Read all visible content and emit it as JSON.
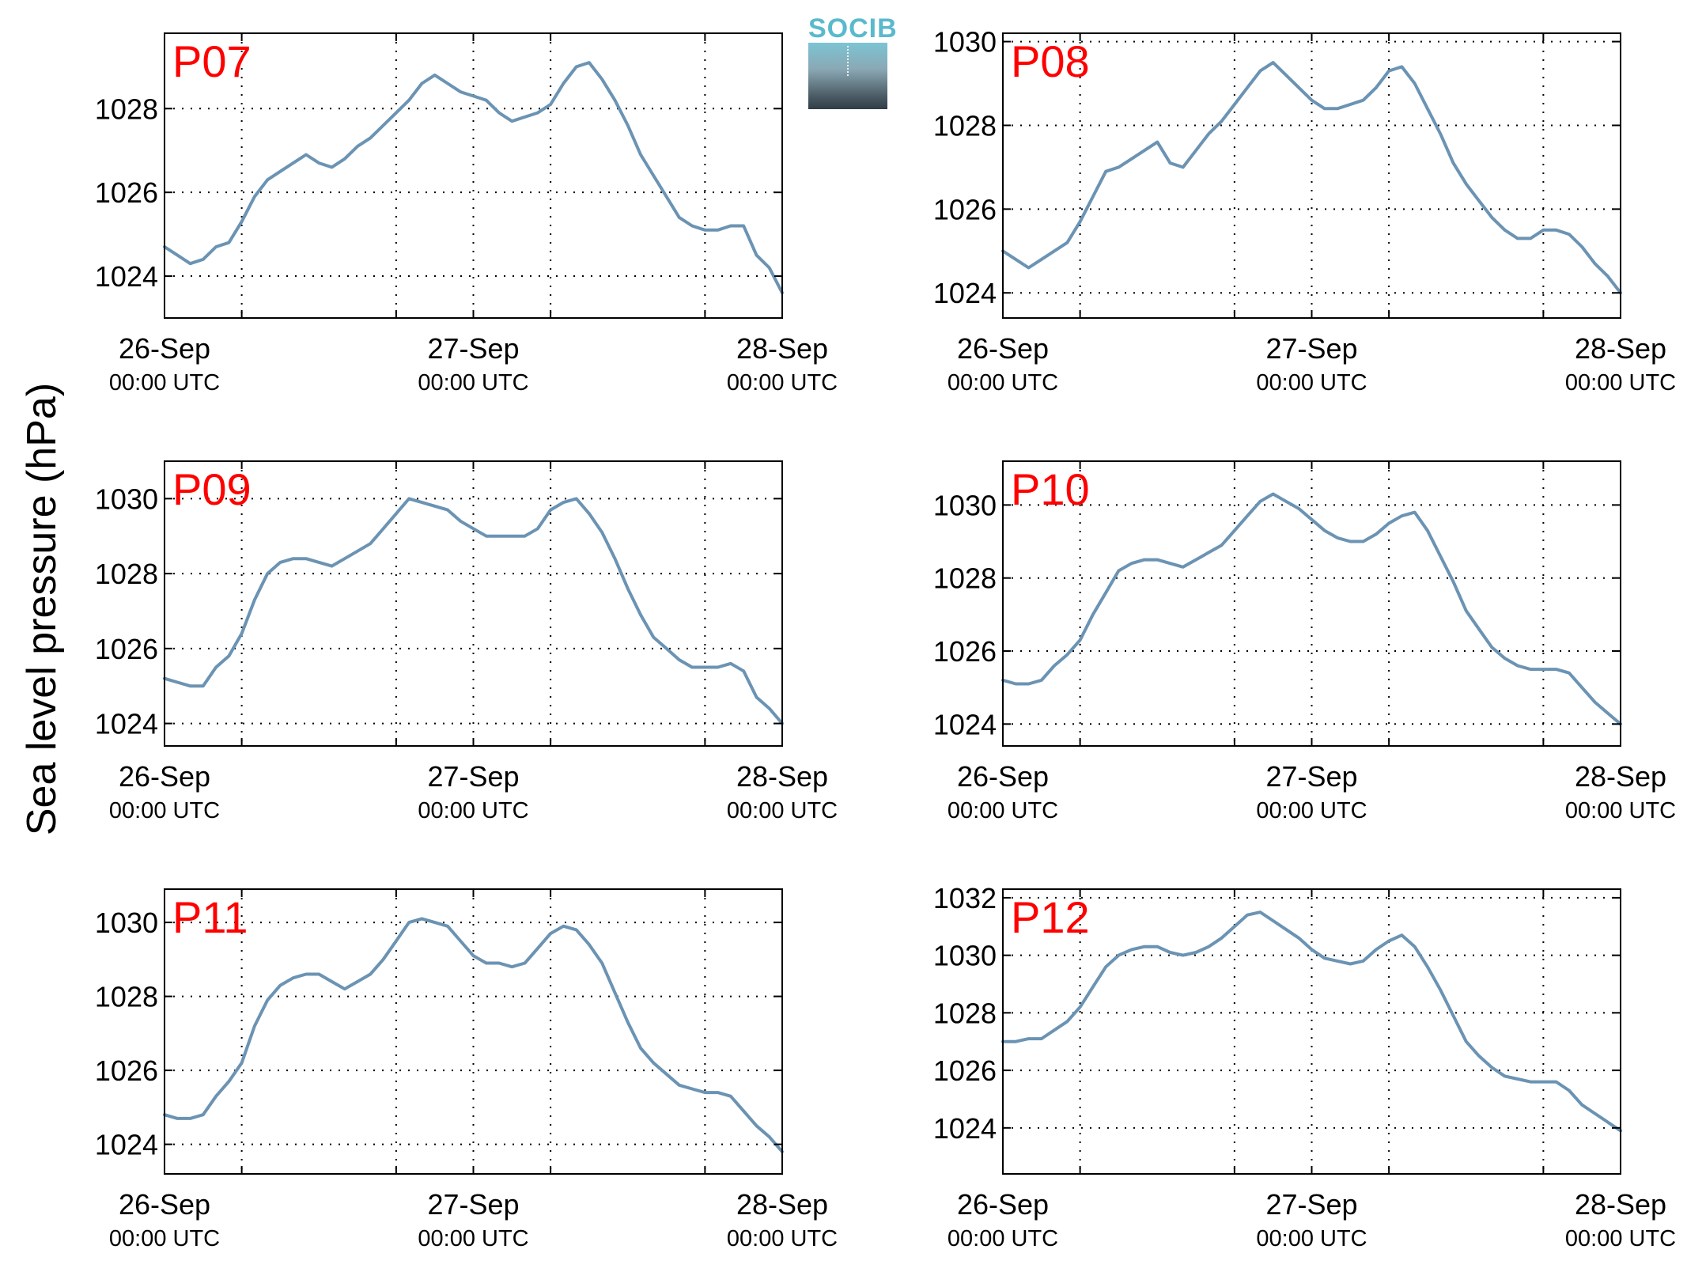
{
  "figure": {
    "ylabel": "Sea level pressure (hPa)",
    "logo_text": "SOCIB",
    "colors": {
      "line": "#6b93b3",
      "panel_label": "#ff0000",
      "logo": "#5ab9cc"
    }
  },
  "chart_data": [
    {
      "type": "line",
      "label": "P07",
      "xlim": [
        0,
        48
      ],
      "ylim": [
        1023,
        1029.8
      ],
      "yticks": [
        "1024",
        "1026",
        "1028"
      ],
      "xticks": [
        {
          "date": "26-Sep",
          "time": "00:00 UTC"
        },
        {
          "date": "27-Sep",
          "time": "00:00 UTC"
        },
        {
          "date": "28-Sep",
          "time": "00:00 UTC"
        }
      ],
      "x_minor": [
        6,
        18,
        30,
        42
      ],
      "grid": true,
      "x": [
        0,
        1,
        2,
        3,
        4,
        5,
        6,
        7,
        8,
        9,
        10,
        11,
        12,
        13,
        14,
        15,
        16,
        17,
        18,
        19,
        20,
        21,
        22,
        23,
        24,
        25,
        26,
        27,
        28,
        29,
        30,
        31,
        32,
        33,
        34,
        35,
        36,
        37,
        38,
        39,
        40,
        41,
        42,
        43,
        44,
        45,
        46,
        47,
        48
      ],
      "y": [
        1024.7,
        1024.5,
        1024.3,
        1024.4,
        1024.7,
        1024.8,
        1025.3,
        1025.9,
        1026.3,
        1026.5,
        1026.7,
        1026.9,
        1026.7,
        1026.6,
        1026.8,
        1027.1,
        1027.3,
        1027.6,
        1027.9,
        1028.2,
        1028.6,
        1028.8,
        1028.6,
        1028.4,
        1028.3,
        1028.2,
        1027.9,
        1027.7,
        1027.8,
        1027.9,
        1028.1,
        1028.6,
        1029.0,
        1029.1,
        1028.7,
        1028.2,
        1027.6,
        1026.9,
        1026.4,
        1025.9,
        1025.4,
        1025.2,
        1025.1,
        1025.1,
        1025.2,
        1025.2,
        1024.5,
        1024.2,
        1023.6
      ]
    },
    {
      "type": "line",
      "label": "P08",
      "xlim": [
        0,
        48
      ],
      "ylim": [
        1023.4,
        1030.2
      ],
      "yticks": [
        "1024",
        "1026",
        "1028",
        "1030"
      ],
      "xticks": [
        {
          "date": "26-Sep",
          "time": "00:00 UTC"
        },
        {
          "date": "27-Sep",
          "time": "00:00 UTC"
        },
        {
          "date": "28-Sep",
          "time": "00:00 UTC"
        }
      ],
      "x_minor": [
        6,
        18,
        30,
        42
      ],
      "grid": true,
      "x": [
        0,
        1,
        2,
        3,
        4,
        5,
        6,
        7,
        8,
        9,
        10,
        11,
        12,
        13,
        14,
        15,
        16,
        17,
        18,
        19,
        20,
        21,
        22,
        23,
        24,
        25,
        26,
        27,
        28,
        29,
        30,
        31,
        32,
        33,
        34,
        35,
        36,
        37,
        38,
        39,
        40,
        41,
        42,
        43,
        44,
        45,
        46,
        47,
        48
      ],
      "y": [
        1025.0,
        1024.8,
        1024.6,
        1024.8,
        1025.0,
        1025.2,
        1025.7,
        1026.3,
        1026.9,
        1027.0,
        1027.2,
        1027.4,
        1027.6,
        1027.1,
        1027.0,
        1027.4,
        1027.8,
        1028.1,
        1028.5,
        1028.9,
        1029.3,
        1029.5,
        1029.2,
        1028.9,
        1028.6,
        1028.4,
        1028.4,
        1028.5,
        1028.6,
        1028.9,
        1029.3,
        1029.4,
        1029.0,
        1028.4,
        1027.8,
        1027.1,
        1026.6,
        1026.2,
        1025.8,
        1025.5,
        1025.3,
        1025.3,
        1025.5,
        1025.5,
        1025.4,
        1025.1,
        1024.7,
        1024.4,
        1024.0
      ]
    },
    {
      "type": "line",
      "label": "P09",
      "xlim": [
        0,
        48
      ],
      "ylim": [
        1023.4,
        1031.0
      ],
      "yticks": [
        "1024",
        "1026",
        "1028",
        "1030"
      ],
      "xticks": [
        {
          "date": "26-Sep",
          "time": "00:00 UTC"
        },
        {
          "date": "27-Sep",
          "time": "00:00 UTC"
        },
        {
          "date": "28-Sep",
          "time": "00:00 UTC"
        }
      ],
      "x_minor": [
        6,
        18,
        30,
        42
      ],
      "grid": true,
      "x": [
        0,
        1,
        2,
        3,
        4,
        5,
        6,
        7,
        8,
        9,
        10,
        11,
        12,
        13,
        14,
        15,
        16,
        17,
        18,
        19,
        20,
        21,
        22,
        23,
        24,
        25,
        26,
        27,
        28,
        29,
        30,
        31,
        32,
        33,
        34,
        35,
        36,
        37,
        38,
        39,
        40,
        41,
        42,
        43,
        44,
        45,
        46,
        47,
        48
      ],
      "y": [
        1025.2,
        1025.1,
        1025.0,
        1025.0,
        1025.5,
        1025.8,
        1026.4,
        1027.3,
        1028.0,
        1028.3,
        1028.4,
        1028.4,
        1028.3,
        1028.2,
        1028.4,
        1028.6,
        1028.8,
        1029.2,
        1029.6,
        1030.0,
        1029.9,
        1029.8,
        1029.7,
        1029.4,
        1029.2,
        1029.0,
        1029.0,
        1029.0,
        1029.0,
        1029.2,
        1029.7,
        1029.9,
        1030.0,
        1029.6,
        1029.1,
        1028.4,
        1027.6,
        1026.9,
        1026.3,
        1026.0,
        1025.7,
        1025.5,
        1025.5,
        1025.5,
        1025.6,
        1025.4,
        1024.7,
        1024.4,
        1024.0
      ]
    },
    {
      "type": "line",
      "label": "P10",
      "xlim": [
        0,
        48
      ],
      "ylim": [
        1023.4,
        1031.2
      ],
      "yticks": [
        "1024",
        "1026",
        "1028",
        "1030"
      ],
      "xticks": [
        {
          "date": "26-Sep",
          "time": "00:00 UTC"
        },
        {
          "date": "27-Sep",
          "time": "00:00 UTC"
        },
        {
          "date": "28-Sep",
          "time": "00:00 UTC"
        }
      ],
      "x_minor": [
        6,
        18,
        30,
        42
      ],
      "grid": true,
      "x": [
        0,
        1,
        2,
        3,
        4,
        5,
        6,
        7,
        8,
        9,
        10,
        11,
        12,
        13,
        14,
        15,
        16,
        17,
        18,
        19,
        20,
        21,
        22,
        23,
        24,
        25,
        26,
        27,
        28,
        29,
        30,
        31,
        32,
        33,
        34,
        35,
        36,
        37,
        38,
        39,
        40,
        41,
        42,
        43,
        44,
        45,
        46,
        47,
        48
      ],
      "y": [
        1025.2,
        1025.1,
        1025.1,
        1025.2,
        1025.6,
        1025.9,
        1026.3,
        1027.0,
        1027.6,
        1028.2,
        1028.4,
        1028.5,
        1028.5,
        1028.4,
        1028.3,
        1028.5,
        1028.7,
        1028.9,
        1029.3,
        1029.7,
        1030.1,
        1030.3,
        1030.1,
        1029.9,
        1029.6,
        1029.3,
        1029.1,
        1029.0,
        1029.0,
        1029.2,
        1029.5,
        1029.7,
        1029.8,
        1029.3,
        1028.6,
        1027.9,
        1027.1,
        1026.6,
        1026.1,
        1025.8,
        1025.6,
        1025.5,
        1025.5,
        1025.5,
        1025.4,
        1025.0,
        1024.6,
        1024.3,
        1024.0
      ]
    },
    {
      "type": "line",
      "label": "P11",
      "xlim": [
        0,
        48
      ],
      "ylim": [
        1023.2,
        1030.9
      ],
      "yticks": [
        "1024",
        "1026",
        "1028",
        "1030"
      ],
      "xticks": [
        {
          "date": "26-Sep",
          "time": "00:00 UTC"
        },
        {
          "date": "27-Sep",
          "time": "00:00 UTC"
        },
        {
          "date": "28-Sep",
          "time": "00:00 UTC"
        }
      ],
      "x_minor": [
        6,
        18,
        30,
        42
      ],
      "grid": true,
      "x": [
        0,
        1,
        2,
        3,
        4,
        5,
        6,
        7,
        8,
        9,
        10,
        11,
        12,
        13,
        14,
        15,
        16,
        17,
        18,
        19,
        20,
        21,
        22,
        23,
        24,
        25,
        26,
        27,
        28,
        29,
        30,
        31,
        32,
        33,
        34,
        35,
        36,
        37,
        38,
        39,
        40,
        41,
        42,
        43,
        44,
        45,
        46,
        47,
        48
      ],
      "y": [
        1024.8,
        1024.7,
        1024.7,
        1024.8,
        1025.3,
        1025.7,
        1026.2,
        1027.2,
        1027.9,
        1028.3,
        1028.5,
        1028.6,
        1028.6,
        1028.4,
        1028.2,
        1028.4,
        1028.6,
        1029.0,
        1029.5,
        1030.0,
        1030.1,
        1030.0,
        1029.9,
        1029.5,
        1029.1,
        1028.9,
        1028.9,
        1028.8,
        1028.9,
        1029.3,
        1029.7,
        1029.9,
        1029.8,
        1029.4,
        1028.9,
        1028.1,
        1027.3,
        1026.6,
        1026.2,
        1025.9,
        1025.6,
        1025.5,
        1025.4,
        1025.4,
        1025.3,
        1024.9,
        1024.5,
        1024.2,
        1023.8
      ]
    },
    {
      "type": "line",
      "label": "P12",
      "xlim": [
        0,
        48
      ],
      "ylim": [
        1022.4,
        1032.3
      ],
      "yticks": [
        "1024",
        "1026",
        "1028",
        "1030",
        "1032"
      ],
      "xticks": [
        {
          "date": "26-Sep",
          "time": "00:00 UTC"
        },
        {
          "date": "27-Sep",
          "time": "00:00 UTC"
        },
        {
          "date": "28-Sep",
          "time": "00:00 UTC"
        }
      ],
      "x_minor": [
        6,
        18,
        30,
        42
      ],
      "grid": true,
      "x": [
        0,
        1,
        2,
        3,
        4,
        5,
        6,
        7,
        8,
        9,
        10,
        11,
        12,
        13,
        14,
        15,
        16,
        17,
        18,
        19,
        20,
        21,
        22,
        23,
        24,
        25,
        26,
        27,
        28,
        29,
        30,
        31,
        32,
        33,
        34,
        35,
        36,
        37,
        38,
        39,
        40,
        41,
        42,
        43,
        44,
        45,
        46,
        47,
        48
      ],
      "y": [
        1027.0,
        1027.0,
        1027.1,
        1027.1,
        1027.4,
        1027.7,
        1028.2,
        1028.9,
        1029.6,
        1030.0,
        1030.2,
        1030.3,
        1030.3,
        1030.1,
        1030.0,
        1030.1,
        1030.3,
        1030.6,
        1031.0,
        1031.4,
        1031.5,
        1031.2,
        1030.9,
        1030.6,
        1030.2,
        1029.9,
        1029.8,
        1029.7,
        1029.8,
        1030.2,
        1030.5,
        1030.7,
        1030.3,
        1029.6,
        1028.8,
        1027.9,
        1027.0,
        1026.5,
        1026.1,
        1025.8,
        1025.7,
        1025.6,
        1025.6,
        1025.6,
        1025.3,
        1024.8,
        1024.5,
        1024.2,
        1023.9
      ]
    }
  ]
}
